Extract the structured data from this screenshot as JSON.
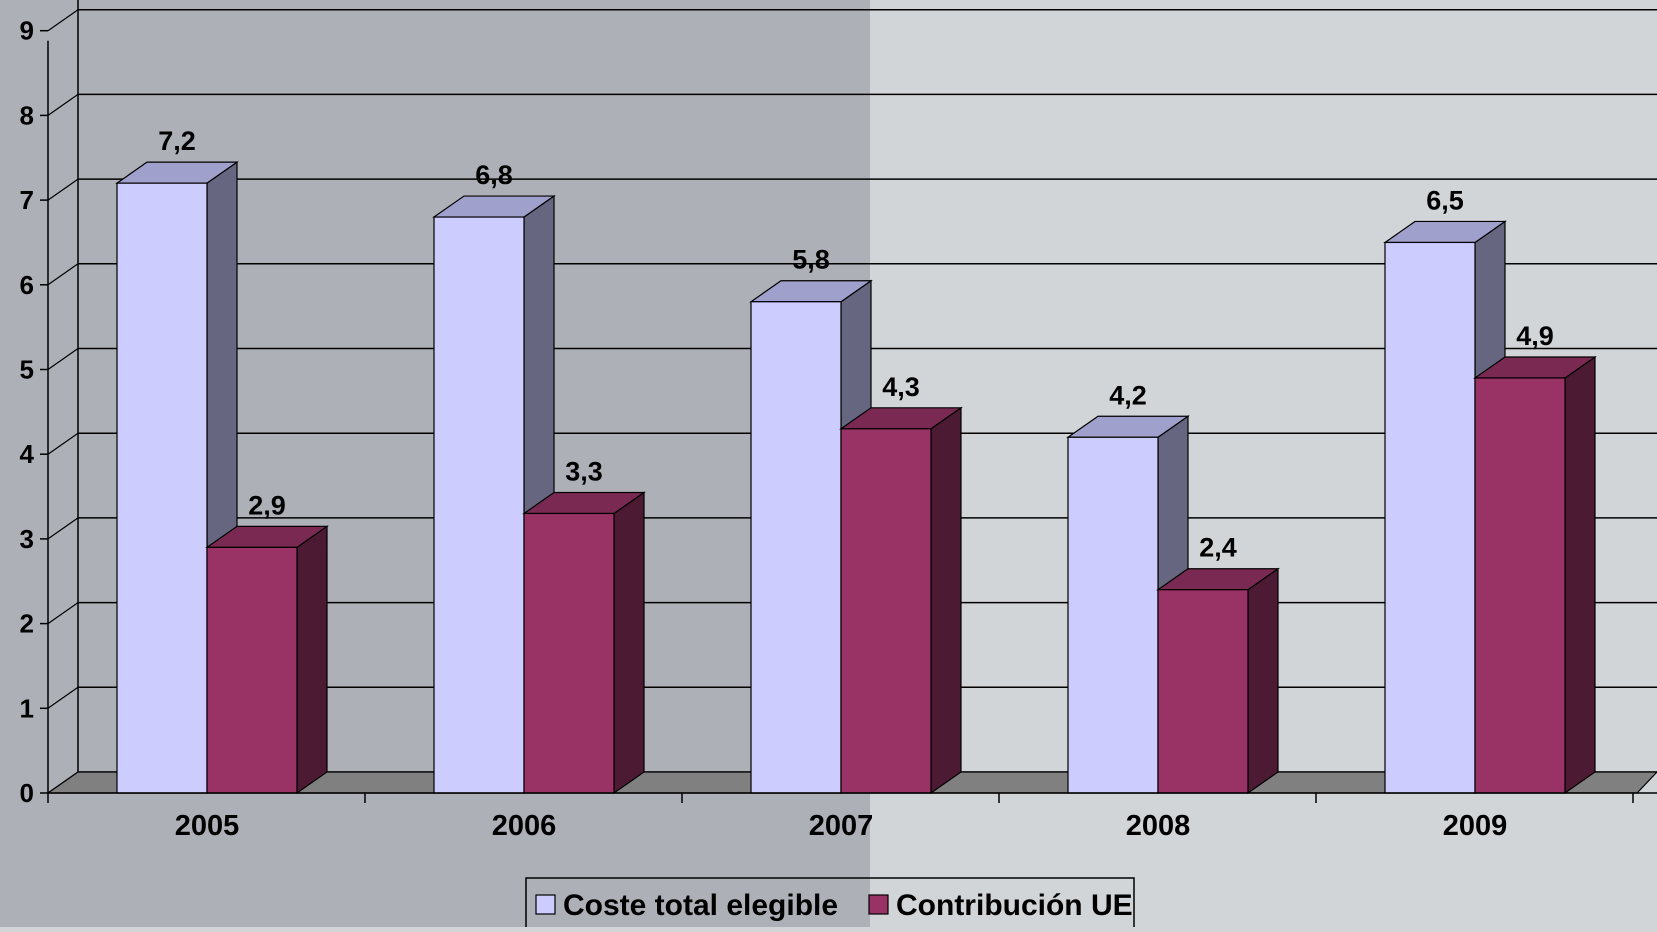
{
  "chart_data": {
    "type": "bar",
    "categories": [
      "2005",
      "2006",
      "2007",
      "2008",
      "2009"
    ],
    "series": [
      {
        "name": "Coste total elegible",
        "values": [
          7.2,
          6.8,
          5.8,
          4.2,
          6.5
        ],
        "data_labels": [
          "7,2",
          "6,8",
          "5,8",
          "4,2",
          "6,5"
        ]
      },
      {
        "name": "Contribución UE",
        "values": [
          2.9,
          3.3,
          4.3,
          2.4,
          4.9
        ],
        "data_labels": [
          "2,9",
          "3,3",
          "4,3",
          "2,4",
          "4,9"
        ]
      }
    ],
    "y_ticks": [
      "0",
      "1",
      "2",
      "3",
      "4",
      "5",
      "6",
      "7",
      "8",
      "9"
    ],
    "ylim": [
      0,
      9
    ],
    "grid": true,
    "legend_position": "bottom-center",
    "style_3d": true
  },
  "colors": {
    "background_left": "#adb1b7",
    "background_right": "#d2d5d8",
    "series1_front": "#ccccff",
    "series1_top": "#a0a0cc",
    "series1_side": "#666680",
    "series2_front": "#993366",
    "series2_top": "#7a2952",
    "series2_side": "#4d1a33",
    "floor": "#808080",
    "gridline": "#000000"
  }
}
